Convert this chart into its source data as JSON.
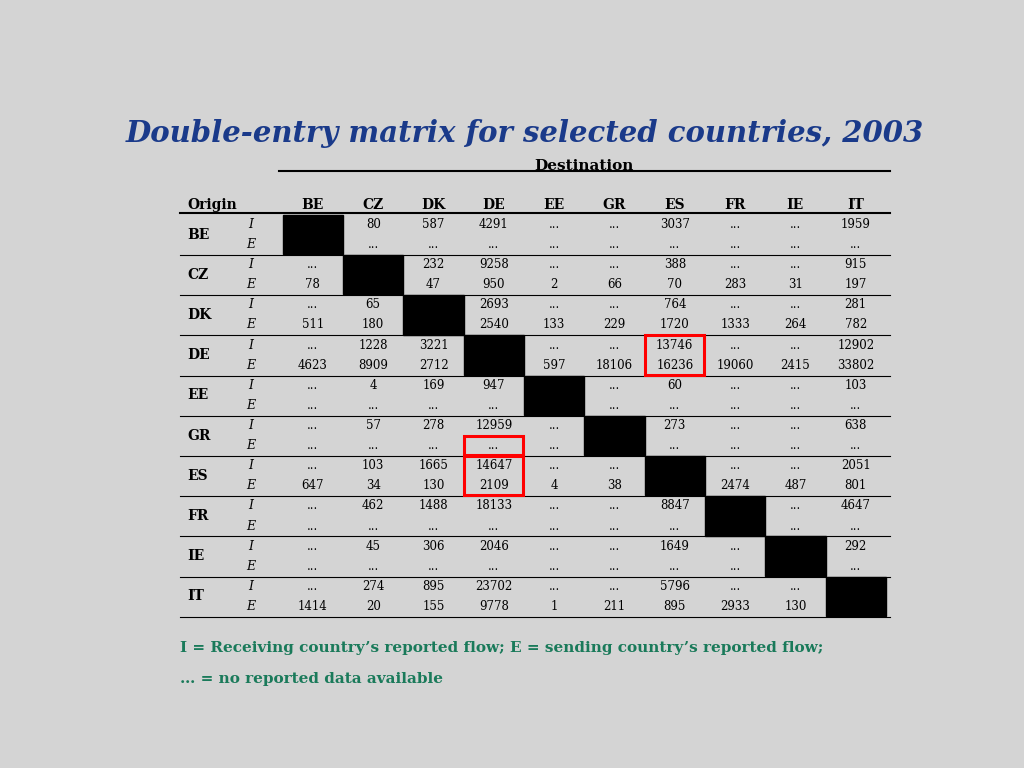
{
  "title": "Double-entry matrix for selected countries, 2003",
  "title_color": "#1a3a8a",
  "subtitle_label": "Destination",
  "origin_label": "Origin",
  "countries": [
    "BE",
    "CZ",
    "DK",
    "DE",
    "EE",
    "GR",
    "ES",
    "FR",
    "IE",
    "IT"
  ],
  "col_headers": [
    "BE",
    "CZ",
    "DK",
    "DE",
    "EE",
    "GR",
    "ES",
    "FR",
    "IE",
    "IT"
  ],
  "background_color": "#d4d4d4",
  "rows": [
    {
      "country": "BE",
      "I": [
        "",
        "80",
        "587",
        "4291",
        "...",
        "...",
        "3037",
        "...",
        "...",
        "1959"
      ],
      "E": [
        "",
        "...",
        "...",
        "...",
        "...",
        "...",
        "...",
        "...",
        "...",
        "..."
      ]
    },
    {
      "country": "CZ",
      "I": [
        "...",
        "",
        "232",
        "9258",
        "...",
        "...",
        "388",
        "...",
        "...",
        "915"
      ],
      "E": [
        "78",
        "",
        "47",
        "950",
        "2",
        "66",
        "70",
        "283",
        "31",
        "197"
      ]
    },
    {
      "country": "DK",
      "I": [
        "...",
        "65",
        "",
        "2693",
        "...",
        "...",
        "764",
        "...",
        "...",
        "281"
      ],
      "E": [
        "511",
        "180",
        "",
        "2540",
        "133",
        "229",
        "1720",
        "1333",
        "264",
        "782"
      ]
    },
    {
      "country": "DE",
      "I": [
        "...",
        "1228",
        "3221",
        "",
        "...",
        "...",
        "13746",
        "...",
        "...",
        "12902"
      ],
      "E": [
        "4623",
        "8909",
        "2712",
        "",
        "597",
        "18106",
        "16236",
        "19060",
        "2415",
        "33802"
      ]
    },
    {
      "country": "EE",
      "I": [
        "...",
        "4",
        "169",
        "947",
        "",
        "...",
        "60",
        "...",
        "...",
        "103"
      ],
      "E": [
        "...",
        "...",
        "...",
        "...",
        "",
        "...",
        "...",
        "...",
        "...",
        "..."
      ]
    },
    {
      "country": "GR",
      "I": [
        "...",
        "57",
        "278",
        "12959",
        "...",
        "",
        "273",
        "...",
        "...",
        "638"
      ],
      "E": [
        "...",
        "...",
        "...",
        "...",
        "...",
        "",
        "...",
        "...",
        "...",
        "..."
      ]
    },
    {
      "country": "ES",
      "I": [
        "...",
        "103",
        "1665",
        "14647",
        "...",
        "...",
        "",
        "...",
        "...",
        "2051"
      ],
      "E": [
        "647",
        "34",
        "130",
        "2109",
        "4",
        "38",
        "",
        "2474",
        "487",
        "801"
      ]
    },
    {
      "country": "FR",
      "I": [
        "...",
        "462",
        "1488",
        "18133",
        "...",
        "...",
        "8847",
        "",
        "...",
        "4647"
      ],
      "E": [
        "...",
        "...",
        "...",
        "...",
        "...",
        "...",
        "...",
        "",
        "...",
        "..."
      ]
    },
    {
      "country": "IE",
      "I": [
        "...",
        "45",
        "306",
        "2046",
        "...",
        "...",
        "1649",
        "...",
        "",
        "292"
      ],
      "E": [
        "...",
        "...",
        "...",
        "...",
        "...",
        "...",
        "...",
        "...",
        "",
        "..."
      ]
    },
    {
      "country": "IT",
      "I": [
        "...",
        "274",
        "895",
        "23702",
        "...",
        "...",
        "5796",
        "...",
        "...",
        ""
      ],
      "E": [
        "1414",
        "20",
        "155",
        "9778",
        "1",
        "211",
        "895",
        "2933",
        "130",
        ""
      ]
    }
  ],
  "red_boxes": [
    {
      "row": "DE",
      "col": "ES",
      "spans": "both"
    },
    {
      "row": "GR",
      "col": "DE",
      "spans": "E"
    },
    {
      "row": "ES",
      "col": "DE",
      "spans": "both"
    }
  ],
  "footnote_line1": "I = Receiving country’s reported flow; E = sending country’s reported flow;",
  "footnote_line2": "… = no reported data available",
  "footnote_color": "#1a7a5a"
}
